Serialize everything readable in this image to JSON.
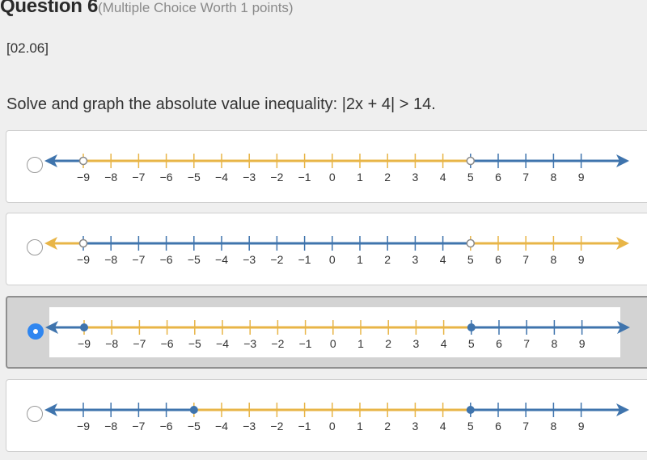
{
  "question": {
    "title": "Question 6",
    "worth": "(Multiple Choice Worth 1 points)",
    "code": "[02.06]",
    "prompt": "Solve and graph the absolute value inequality: |2x + 4| > 14."
  },
  "colors": {
    "blue": "#3f74ad",
    "orange": "#e8b547",
    "radio_selected": "#2f86f0"
  },
  "tick_labels": [
    "−9",
    "−8",
    "−7",
    "−6",
    "−5",
    "−4",
    "−3",
    "−2",
    "−1",
    "0",
    "1",
    "2",
    "3",
    "4",
    "5",
    "6",
    "7",
    "8",
    "9"
  ],
  "options": [
    {
      "selected": false,
      "segments": [
        {
          "from": "-inf",
          "to": -9,
          "color": "blue"
        },
        {
          "from": -9,
          "to": 5,
          "color": "orange"
        },
        {
          "from": 5,
          "to": "inf",
          "color": "blue"
        }
      ],
      "points": [
        {
          "x": -9,
          "type": "open"
        },
        {
          "x": 5,
          "type": "open"
        }
      ]
    },
    {
      "selected": false,
      "segments": [
        {
          "from": "-inf",
          "to": -9,
          "color": "orange"
        },
        {
          "from": -9,
          "to": 5,
          "color": "blue"
        },
        {
          "from": 5,
          "to": "inf",
          "color": "orange"
        }
      ],
      "points": [
        {
          "x": -9,
          "type": "open"
        },
        {
          "x": 5,
          "type": "open"
        }
      ]
    },
    {
      "selected": true,
      "segments": [
        {
          "from": "-inf",
          "to": -9,
          "color": "blue"
        },
        {
          "from": -9,
          "to": 5,
          "color": "orange"
        },
        {
          "from": 5,
          "to": "inf",
          "color": "blue"
        }
      ],
      "points": [
        {
          "x": -9,
          "type": "closed"
        },
        {
          "x": 5,
          "type": "closed"
        }
      ]
    },
    {
      "selected": false,
      "segments": [
        {
          "from": "-inf",
          "to": -5,
          "color": "blue"
        },
        {
          "from": -5,
          "to": 5,
          "color": "orange"
        },
        {
          "from": 5,
          "to": "inf",
          "color": "blue"
        }
      ],
      "points": [
        {
          "x": -5,
          "type": "closed"
        },
        {
          "x": 5,
          "type": "closed"
        }
      ]
    }
  ]
}
